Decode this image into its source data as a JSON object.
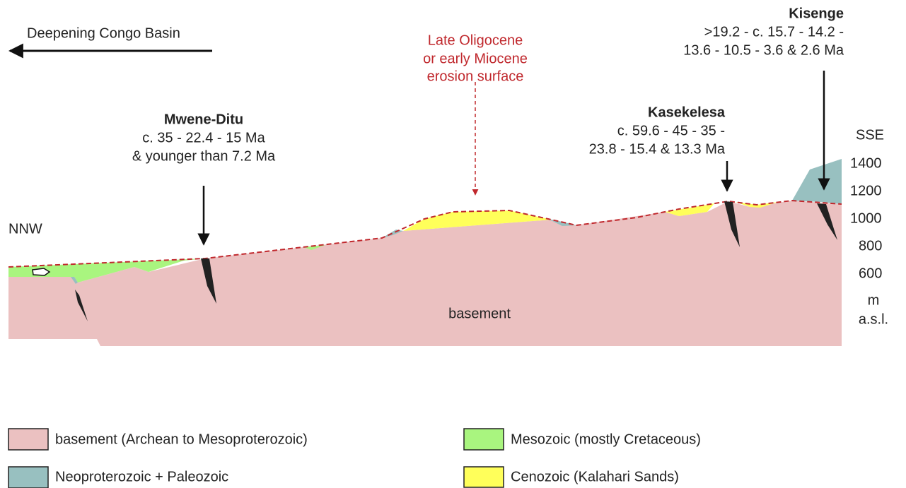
{
  "direction": {
    "label": "Deepening Congo Basin"
  },
  "erosion_surface": {
    "lines": [
      "Late Oligocene",
      "or early Miocene",
      "erosion surface"
    ]
  },
  "sites": [
    {
      "name": "Mwene-Ditu",
      "ages": [
        "c. 35 - 22.4 - 15 Ma",
        "& younger than 7.2 Ma"
      ]
    },
    {
      "name": "Kasekelesa",
      "ages": [
        "c. 59.6 - 45 - 35 -",
        "23.8 - 15.4 & 13.3 Ma"
      ]
    },
    {
      "name": "Kisenge",
      "ages": [
        ">19.2 - c. 15.7 - 14.2 -",
        "13.6 - 10.5 - 3.6 & 2.6 Ma"
      ]
    }
  ],
  "ends": {
    "left": "NNW",
    "right": "SSE"
  },
  "elevation_scale": {
    "ticks": [
      "1400",
      "1200",
      "1000",
      "800",
      "600"
    ],
    "unit": [
      "m",
      "a.s.l."
    ]
  },
  "section_label": "basement",
  "legend": [
    {
      "label": "basement (Archean to Mesoproterozoic)"
    },
    {
      "label": "Neoproterozoic + Paleozoic"
    },
    {
      "label": "Mesozoic (mostly Cretaceous)"
    },
    {
      "label": "Cenozoic (Kalahari Sands)"
    }
  ]
}
